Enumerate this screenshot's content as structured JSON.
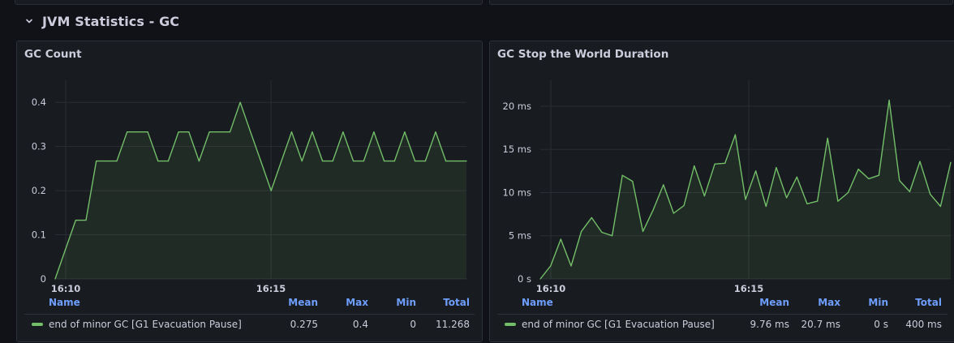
{
  "row": {
    "title": "JVM Statistics - GC"
  },
  "colors": {
    "series": "#73bf69",
    "legend_header": "#6e9fff"
  },
  "panels": [
    {
      "title": "GC Count",
      "legend": {
        "headers": {
          "name": "Name",
          "mean": "Mean",
          "max": "Max",
          "min": "Min",
          "total": "Total"
        },
        "series_name": "end of minor GC [G1 Evacuation Pause]",
        "mean": "0.275",
        "max": "0.4",
        "min": "0",
        "total": "11.268"
      },
      "chart_data": {
        "type": "area",
        "y_ticks": [
          "0",
          "0.1",
          "0.2",
          "0.3",
          "0.4"
        ],
        "x_ticks": [
          "16:10",
          "16:15"
        ],
        "ylim": [
          0,
          0.45
        ],
        "grid": true,
        "series": [
          {
            "name": "end of minor GC [G1 Evacuation Pause]",
            "values": [
              0,
              0.067,
              0.133,
              0.133,
              0.267,
              0.267,
              0.267,
              0.333,
              0.333,
              0.333,
              0.267,
              0.267,
              0.333,
              0.333,
              0.267,
              0.333,
              0.333,
              0.333,
              0.4,
              0.333,
              0.267,
              0.2,
              0.267,
              0.333,
              0.267,
              0.333,
              0.267,
              0.267,
              0.333,
              0.267,
              0.267,
              0.333,
              0.267,
              0.267,
              0.333,
              0.267,
              0.267,
              0.333,
              0.267,
              0.267,
              0.267
            ]
          }
        ]
      }
    },
    {
      "title": "GC Stop the World Duration",
      "legend": {
        "headers": {
          "name": "Name",
          "mean": "Mean",
          "max": "Max",
          "min": "Min",
          "total": "Total"
        },
        "series_name": "end of minor GC [G1 Evacuation Pause]",
        "mean": "9.76 ms",
        "max": "20.7 ms",
        "min": "0 s",
        "total": "400 ms"
      },
      "chart_data": {
        "type": "area",
        "y_ticks": [
          "0 s",
          "5 ms",
          "10 ms",
          "15 ms",
          "20 ms"
        ],
        "x_ticks": [
          "16:10",
          "16:15"
        ],
        "ylim": [
          0,
          23
        ],
        "grid": true,
        "series": [
          {
            "name": "end of minor GC [G1 Evacuation Pause]",
            "values": [
              0,
              1.5,
              4.6,
              1.5,
              5.5,
              7.1,
              5.4,
              5.0,
              12.0,
              11.3,
              5.5,
              8.0,
              10.9,
              7.6,
              8.5,
              13.1,
              9.6,
              13.3,
              13.4,
              16.7,
              9.2,
              12.5,
              8.4,
              12.9,
              9.4,
              11.8,
              8.7,
              9.0,
              16.3,
              9.0,
              10.0,
              12.7,
              11.6,
              12.0,
              20.7,
              11.4,
              10.1,
              13.6,
              9.8,
              8.4,
              13.5
            ]
          }
        ]
      }
    }
  ]
}
